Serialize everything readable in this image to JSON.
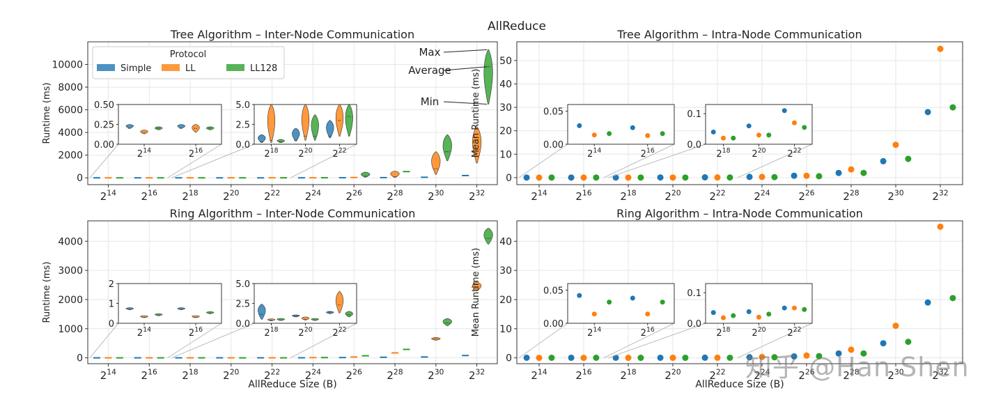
{
  "suptitle": "AllReduce",
  "watermark": "知乎 @Han Shen",
  "colors": {
    "Simple": "#1f77b4",
    "LL": "#ff7f0e",
    "LL128": "#2ca02c",
    "grid": "#e6e6e6",
    "axis": "#333333"
  },
  "chart_data": [
    {
      "id": "tree_inter",
      "type": "violin",
      "title": "Tree Algorithm – Inter-Node Communication",
      "xlabel": "",
      "ylabel": "Runtime (ms)",
      "ylim": [
        -600,
        12000
      ],
      "yticks": [
        0,
        2000,
        4000,
        6000,
        8000,
        10000
      ],
      "xticks": [
        14,
        16,
        18,
        20,
        22,
        24,
        26,
        28,
        30,
        32
      ],
      "xtick_base": "2",
      "legend": {
        "title": "Protocol",
        "entries": [
          "Simple",
          "LL",
          "LL128"
        ],
        "placement": "top-left"
      },
      "annotations": [
        "Max",
        "Average",
        "Min"
      ],
      "series": [
        {
          "name": "Simple",
          "mean": [
            0.2,
            0.2,
            0.3,
            0.5,
            1,
            3,
            10,
            20,
            50,
            200
          ],
          "min": [
            0.2,
            0.2,
            0.2,
            0.4,
            0.8,
            2,
            8,
            15,
            40,
            180
          ],
          "max": [
            0.25,
            0.25,
            1.2,
            2,
            3,
            10,
            20,
            40,
            80,
            260
          ]
        },
        {
          "name": "LL",
          "mean": [
            0.15,
            0.2,
            0.5,
            1,
            3,
            6,
            30,
            100,
            800,
            2500
          ],
          "min": [
            0.13,
            0.15,
            0.2,
            0.5,
            1,
            3,
            10,
            30,
            300,
            1300
          ],
          "max": [
            0.18,
            0.25,
            5,
            5,
            5,
            20,
            60,
            600,
            2300,
            4500
          ]
        },
        {
          "name": "LL128",
          "mean": [
            0.2,
            0.2,
            0.3,
            1,
            3.5,
            10,
            150,
            550,
            2300,
            9800
          ],
          "min": [
            0.18,
            0.18,
            0.2,
            0.5,
            1,
            4,
            50,
            450,
            1500,
            6500
          ],
          "max": [
            0.22,
            0.22,
            0.6,
            3.7,
            5,
            30,
            500,
            700,
            3800,
            11300
          ]
        }
      ],
      "insets": [
        {
          "ylim": [
            0,
            0.5
          ],
          "yticks": [
            0.0,
            0.25,
            0.5
          ],
          "ytick_labels": [
            "0.00",
            "0.25",
            "0.50"
          ],
          "xticks": [
            14,
            16
          ]
        },
        {
          "ylim": [
            0,
            5
          ],
          "yticks": [
            0.0,
            2.5,
            5.0
          ],
          "ytick_labels": [
            "0.0",
            "2.5",
            "5.0"
          ],
          "xticks": [
            18,
            20,
            22
          ]
        }
      ]
    },
    {
      "id": "tree_intra",
      "type": "scatter",
      "title": "Tree Algorithm – Intra-Node Communication",
      "xlabel": "",
      "ylabel": "Mean Runtime (ms)",
      "ylim": [
        -3,
        58
      ],
      "yticks": [
        0,
        10,
        20,
        30,
        40,
        50
      ],
      "xticks": [
        14,
        16,
        18,
        20,
        22,
        24,
        26,
        28,
        30,
        32
      ],
      "xtick_base": "2",
      "series": [
        {
          "name": "Simple",
          "values": [
            0.028,
            0.025,
            0.04,
            0.06,
            0.11,
            0.3,
            0.8,
            2,
            7,
            28
          ]
        },
        {
          "name": "LL",
          "values": [
            0.014,
            0.013,
            0.02,
            0.03,
            0.07,
            0.3,
            0.8,
            3.5,
            14,
            55
          ]
        },
        {
          "name": "LL128",
          "values": [
            0.016,
            0.016,
            0.02,
            0.03,
            0.055,
            0.2,
            0.6,
            2,
            8,
            30
          ]
        }
      ],
      "insets": [
        {
          "ylim": [
            0,
            0.06
          ],
          "yticks": [
            0.0,
            0.05
          ],
          "ytick_labels": [
            "0.00",
            "0.05"
          ],
          "xticks": [
            14,
            16
          ]
        },
        {
          "ylim": [
            0,
            0.13
          ],
          "yticks": [
            0.0,
            0.1
          ],
          "ytick_labels": [
            "0.0",
            "0.1"
          ],
          "xticks": [
            18,
            20,
            22
          ]
        }
      ]
    },
    {
      "id": "ring_inter",
      "type": "violin",
      "title": "Ring Algorithm – Inter-Node Communication",
      "xlabel": "AllReduce Size (B)",
      "ylabel": "Runtime (ms)",
      "ylim": [
        -200,
        4700
      ],
      "yticks": [
        0,
        1000,
        2000,
        3000,
        4000
      ],
      "xticks": [
        14,
        16,
        18,
        20,
        22,
        24,
        26,
        28,
        30,
        32
      ],
      "xtick_base": "2",
      "series": [
        {
          "name": "Simple",
          "mean": [
            0.7,
            0.7,
            1.1,
            0.9,
            1.4,
            3,
            10,
            20,
            30,
            80
          ],
          "min": [
            0.68,
            0.68,
            0.5,
            0.8,
            1.2,
            2,
            8,
            15,
            25,
            70
          ],
          "max": [
            0.72,
            0.72,
            2.4,
            1,
            1.5,
            5,
            15,
            25,
            40,
            100
          ]
        },
        {
          "name": "LL",
          "mean": [
            0.3,
            0.3,
            0.4,
            0.5,
            2.3,
            8,
            30,
            170,
            650,
            2400
          ],
          "min": [
            0.28,
            0.28,
            0.3,
            0.4,
            1.3,
            5,
            20,
            140,
            600,
            2300
          ],
          "max": [
            0.32,
            0.32,
            0.5,
            0.8,
            4,
            12,
            40,
            200,
            700,
            2600
          ]
        },
        {
          "name": "LL128",
          "mean": [
            0.4,
            0.5,
            0.4,
            0.4,
            1.1,
            10,
            70,
            290,
            1200,
            4100
          ],
          "min": [
            0.38,
            0.48,
            0.35,
            0.35,
            0.8,
            7,
            50,
            250,
            1100,
            3900
          ],
          "max": [
            0.42,
            0.52,
            0.45,
            0.45,
            1.5,
            14,
            90,
            330,
            1350,
            4450
          ]
        }
      ],
      "insets": [
        {
          "ylim": [
            0,
            2
          ],
          "yticks": [
            0,
            1,
            2
          ],
          "ytick_labels": [
            "0",
            "1",
            "2"
          ],
          "xticks": [
            14,
            16
          ]
        },
        {
          "ylim": [
            0,
            5
          ],
          "yticks": [
            0.0,
            2.5,
            5.0
          ],
          "ytick_labels": [
            "0.0",
            "2.5",
            "5.0"
          ],
          "xticks": [
            18,
            20,
            22
          ]
        }
      ]
    },
    {
      "id": "ring_intra",
      "type": "scatter",
      "title": "Ring Algorithm – Intra-Node Communication",
      "xlabel": "AllReduce Size (B)",
      "ylabel": "Mean Runtime (ms)",
      "ylim": [
        -2,
        47
      ],
      "yticks": [
        0,
        10,
        20,
        30,
        40
      ],
      "xticks": [
        14,
        16,
        18,
        20,
        22,
        24,
        26,
        28,
        30,
        32
      ],
      "xtick_base": "2",
      "series": [
        {
          "name": "Simple",
          "values": [
            0.042,
            0.038,
            0.035,
            0.038,
            0.05,
            0.2,
            0.5,
            1.5,
            5,
            19
          ]
        },
        {
          "name": "LL",
          "values": [
            0.014,
            0.014,
            0.018,
            0.02,
            0.05,
            0.3,
            0.8,
            2.8,
            11,
            45
          ]
        },
        {
          "name": "LL128",
          "values": [
            0.032,
            0.032,
            0.025,
            0.03,
            0.045,
            0.2,
            0.6,
            1.5,
            5.5,
            20.5
          ]
        }
      ],
      "insets": [
        {
          "ylim": [
            0,
            0.06
          ],
          "yticks": [
            0.0,
            0.05
          ],
          "ytick_labels": [
            "0.00",
            "0.05"
          ],
          "xticks": [
            14,
            16
          ]
        },
        {
          "ylim": [
            0,
            0.13
          ],
          "yticks": [
            0.0,
            0.1
          ],
          "ytick_labels": [
            "0.0",
            "0.1"
          ],
          "xticks": [
            18,
            20,
            22
          ]
        }
      ]
    }
  ]
}
